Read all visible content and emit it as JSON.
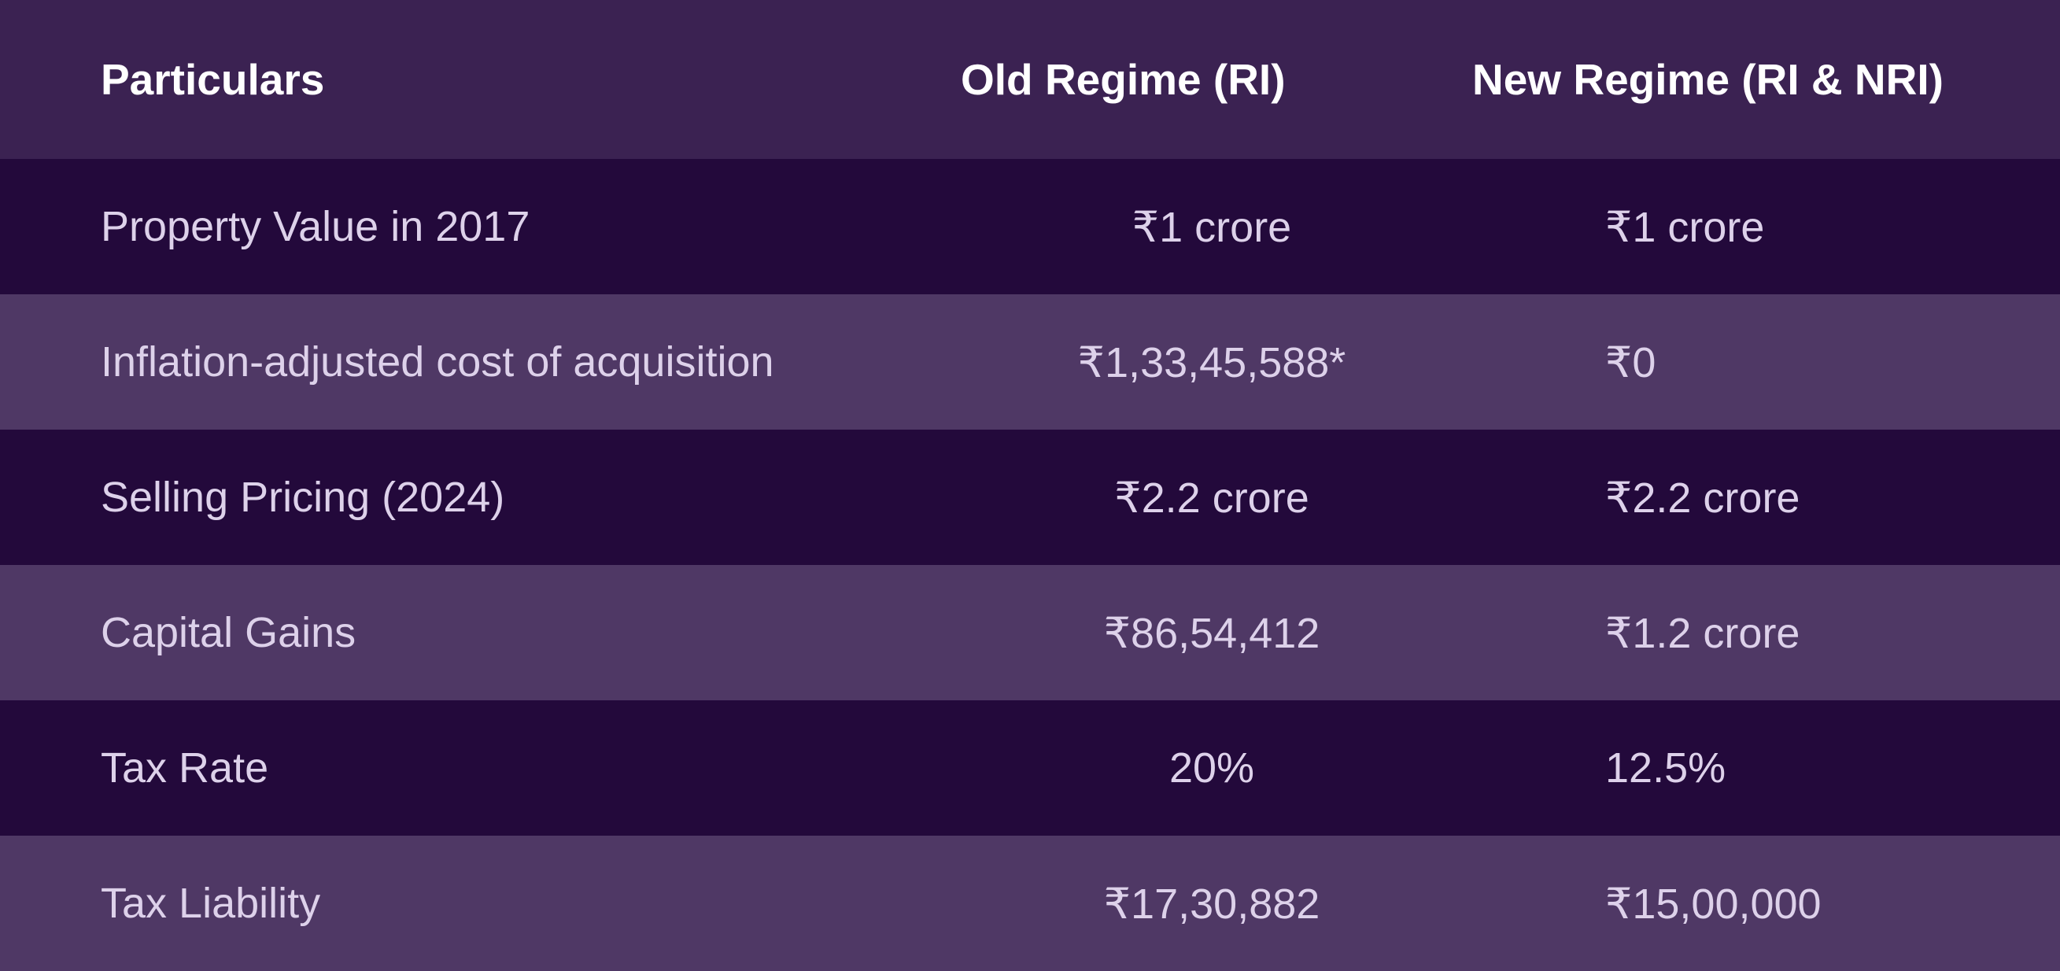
{
  "table": {
    "headers": [
      "Particulars",
      "Old Regime (RI)",
      "New Regime (RI & NRI)"
    ],
    "rows": [
      [
        "Property Value in 2017",
        "₹1 crore",
        "₹1 crore"
      ],
      [
        "Inflation-adjusted cost of acquisition",
        "₹1,33,45,588*",
        "₹0"
      ],
      [
        "Selling Pricing (2024)",
        "₹2.2 crore",
        "₹2.2 crore"
      ],
      [
        "Capital Gains",
        "₹86,54,412",
        "₹1.2 crore"
      ],
      [
        "Tax Rate",
        "20%",
        "12.5%"
      ],
      [
        "Tax Liability",
        "₹17,30,882",
        "₹15,00,000"
      ]
    ]
  },
  "colors": {
    "header_bg": "#3b2252",
    "row_dark_bg": "#23093b",
    "row_light_bg": "#4f3865",
    "header_text": "#ffffff",
    "body_text": "#ddd1ea"
  }
}
